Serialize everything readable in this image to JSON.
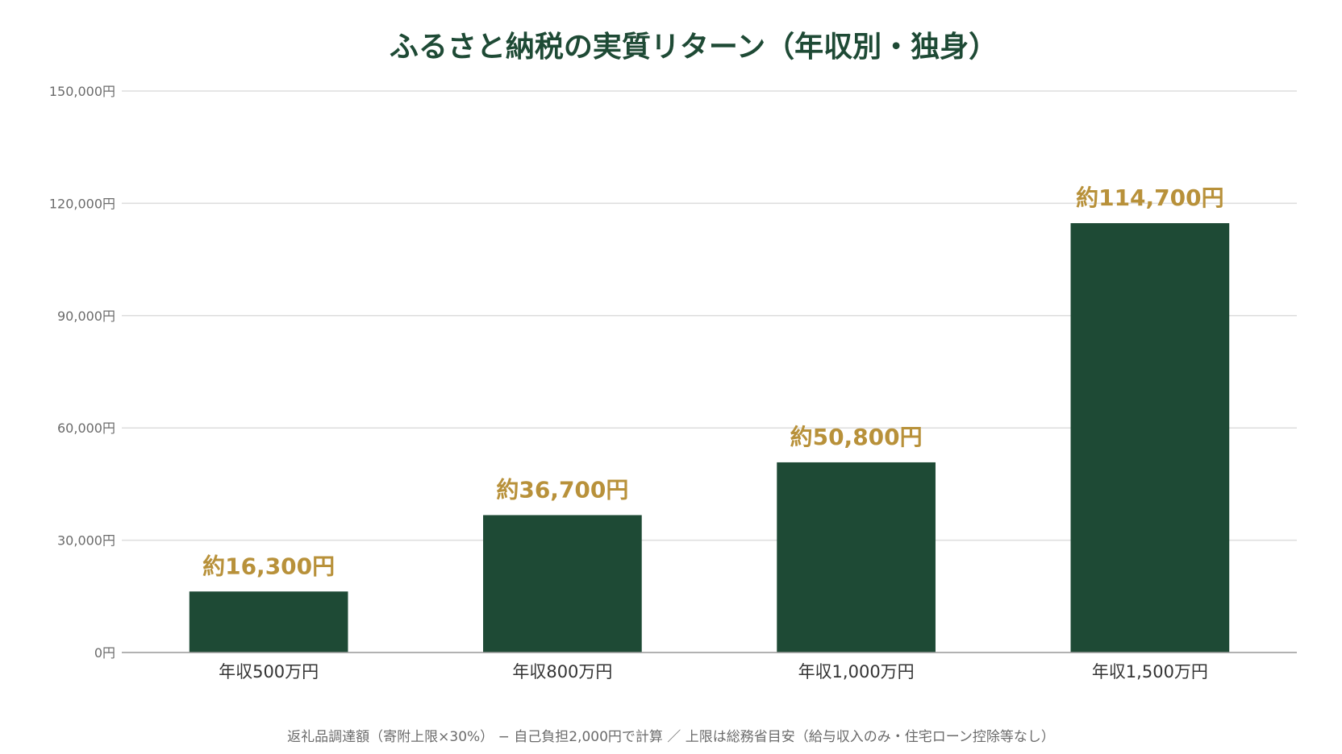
{
  "colors": {
    "title": "#1e4a35",
    "bar": "#1e4a35",
    "value_label": "#b8913a",
    "tick": "#6b6b6b",
    "category": "#333333",
    "grid": "#dddddd",
    "axis": "#999999",
    "footnote": "#6b6b6b"
  },
  "chart_data": {
    "type": "bar",
    "title": "ふるさと納税の実質リターン（年収別・独身）",
    "xlabel": "",
    "ylabel": "",
    "categories": [
      "年収500万円",
      "年収800万円",
      "年収1,000万円",
      "年収1,500万円"
    ],
    "values": [
      16300,
      36700,
      50800,
      114700
    ],
    "value_labels": [
      "約16,300円",
      "約36,700円",
      "約50,800円",
      "約114,700円"
    ],
    "ylim": [
      0,
      150000
    ],
    "yticks": [
      0,
      30000,
      60000,
      90000,
      120000,
      150000
    ],
    "ytick_labels": [
      "0円",
      "30,000円",
      "60,000円",
      "90,000円",
      "120,000円",
      "150,000円"
    ],
    "grid": true,
    "legend": "none"
  },
  "footnote": "返礼品調達額（寄附上限×30%） − 自己負担2,000円で計算 ／ 上限は総務省目安（給与収入のみ・住宅ローン控除等なし）"
}
